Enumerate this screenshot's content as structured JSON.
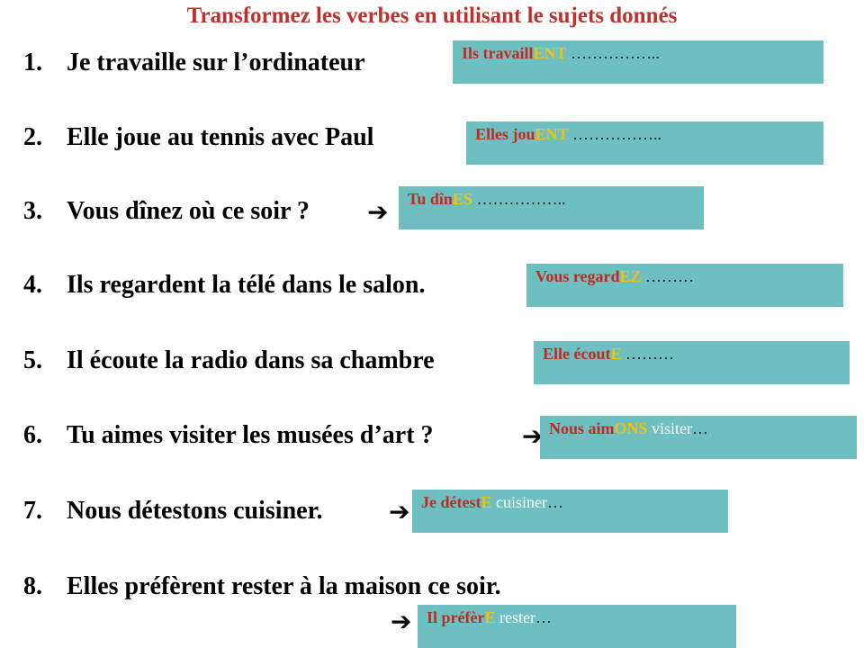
{
  "title": "Transformez les verbes en utilisant le sujets donnés",
  "arrow_glyph": "➔",
  "items": [
    {
      "num": "1.",
      "sentence": "Je travaille sur l’ordinateur",
      "subject": "Ils",
      "stem": "travaill",
      "ending": "ENT",
      "rest": "",
      "dots": " ……………..",
      "arrow": ""
    },
    {
      "num": "2.",
      "sentence": "Elle joue au tennis avec Paul",
      "subject": "Elles",
      "stem": "jou",
      "ending": "ENT",
      "rest": "",
      "dots": " ……………..",
      "arrow": ""
    },
    {
      "num": "3.",
      "sentence": "Vous dînez où ce soir ?",
      "subject": "Tu",
      "stem": "dîn",
      "ending": "ES",
      "rest": "",
      "dots": " ……………..",
      "arrow": "➔"
    },
    {
      "num": "4.",
      "sentence": "Ils regardent la télé dans le salon.",
      "subject": "Vous",
      "stem": "regard",
      "ending": "EZ",
      "rest": "",
      "dots": " ………",
      "arrow": ""
    },
    {
      "num": "5.",
      "sentence": "Il écoute la radio dans sa chambre",
      "subject": "Elle",
      "stem": "écout",
      "ending": "E",
      "rest": "",
      "dots": " ………",
      "arrow": ""
    },
    {
      "num": "6.",
      "sentence": "Tu aimes visiter les musées d’art ?",
      "subject": "Nous",
      "stem": "aim",
      "ending": "ONS",
      "rest": " visiter",
      "dots": "…",
      "arrow": "➔"
    },
    {
      "num": "7.",
      "sentence": "Nous détestons cuisiner.",
      "subject": "Je",
      "stem": "détest",
      "ending": "E",
      "rest": " cuisiner",
      "dots": "…",
      "arrow": "➔"
    },
    {
      "num": "8.",
      "sentence": "Elles préfèrent rester à la maison ce soir.",
      "subject": "Il",
      "stem": "préfèr",
      "ending": "E",
      "rest": " rester",
      "dots": "…",
      "arrow": "➔"
    }
  ]
}
